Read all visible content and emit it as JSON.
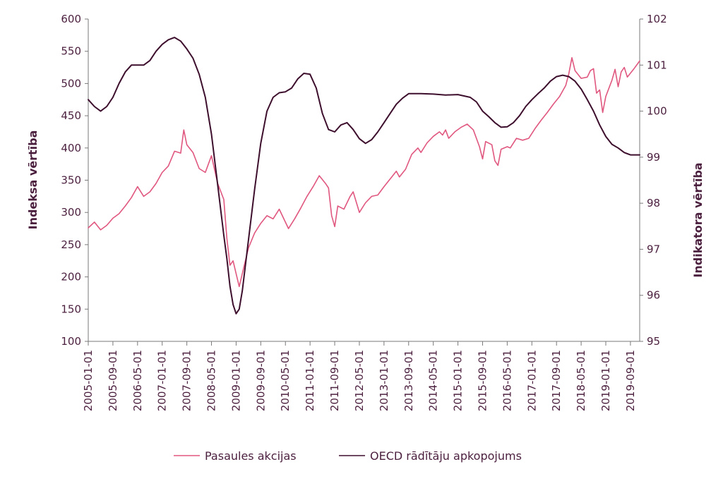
{
  "chart_data": {
    "type": "line",
    "title": "",
    "x_ticks": [
      "2005-01-01",
      "2005-09-01",
      "2006-05-01",
      "2007-01-01",
      "2007-09-01",
      "2008-05-01",
      "2009-01-01",
      "2009-09-01",
      "2010-05-01",
      "2011-01-01",
      "2011-09-01",
      "2012-05-01",
      "2013-01-01",
      "2013-09-01",
      "2014-05-01",
      "2015-01-01",
      "2015-09-01",
      "2016-05-01",
      "2017-01-01",
      "2017-09-01",
      "2018-05-01",
      "2019-01-01",
      "2019-09-01"
    ],
    "x_range": [
      "2005-01-01",
      "2019-12-01"
    ],
    "y_left": {
      "label": "Indeksa vērtība",
      "min": 100,
      "max": 600,
      "ticks": [
        100,
        150,
        200,
        250,
        300,
        350,
        400,
        450,
        500,
        550,
        600
      ]
    },
    "y_right": {
      "label": "Indikatora vērtība",
      "min": 95,
      "max": 102,
      "ticks": [
        95,
        96,
        97,
        98,
        99,
        100,
        101,
        102
      ]
    },
    "grid": false,
    "legend_position": "bottom",
    "series": [
      {
        "name": "Pasaules akcijas",
        "axis": "left",
        "color": "#e0577f",
        "points": [
          [
            "2005-01-01",
            276
          ],
          [
            "2005-03-01",
            285
          ],
          [
            "2005-05-01",
            273
          ],
          [
            "2005-07-01",
            280
          ],
          [
            "2005-09-01",
            291
          ],
          [
            "2005-11-01",
            298
          ],
          [
            "2006-01-01",
            310
          ],
          [
            "2006-03-01",
            323
          ],
          [
            "2006-05-01",
            340
          ],
          [
            "2006-07-01",
            325
          ],
          [
            "2006-09-01",
            332
          ],
          [
            "2006-11-01",
            345
          ],
          [
            "2007-01-01",
            362
          ],
          [
            "2007-03-01",
            372
          ],
          [
            "2007-05-01",
            395
          ],
          [
            "2007-07-01",
            392
          ],
          [
            "2007-08-01",
            428
          ],
          [
            "2007-09-01",
            405
          ],
          [
            "2007-11-01",
            393
          ],
          [
            "2008-01-01",
            368
          ],
          [
            "2008-03-01",
            362
          ],
          [
            "2008-05-01",
            388
          ],
          [
            "2008-07-01",
            345
          ],
          [
            "2008-09-01",
            320
          ],
          [
            "2008-10-01",
            260
          ],
          [
            "2008-11-01",
            218
          ],
          [
            "2008-12-01",
            225
          ],
          [
            "2009-01-01",
            205
          ],
          [
            "2009-02-01",
            185
          ],
          [
            "2009-03-01",
            205
          ],
          [
            "2009-05-01",
            245
          ],
          [
            "2009-07-01",
            268
          ],
          [
            "2009-09-01",
            283
          ],
          [
            "2009-11-01",
            295
          ],
          [
            "2010-01-01",
            290
          ],
          [
            "2010-03-01",
            305
          ],
          [
            "2010-05-01",
            285
          ],
          [
            "2010-06-01",
            275
          ],
          [
            "2010-08-01",
            290
          ],
          [
            "2010-10-01",
            307
          ],
          [
            "2010-12-01",
            325
          ],
          [
            "2011-02-01",
            340
          ],
          [
            "2011-04-01",
            357
          ],
          [
            "2011-06-01",
            345
          ],
          [
            "2011-07-01",
            338
          ],
          [
            "2011-08-01",
            295
          ],
          [
            "2011-09-01",
            278
          ],
          [
            "2011-10-01",
            310
          ],
          [
            "2011-12-01",
            305
          ],
          [
            "2012-02-01",
            325
          ],
          [
            "2012-03-01",
            332
          ],
          [
            "2012-05-01",
            300
          ],
          [
            "2012-07-01",
            315
          ],
          [
            "2012-09-01",
            325
          ],
          [
            "2012-11-01",
            327
          ],
          [
            "2013-01-01",
            340
          ],
          [
            "2013-03-01",
            352
          ],
          [
            "2013-05-01",
            364
          ],
          [
            "2013-06-01",
            355
          ],
          [
            "2013-08-01",
            367
          ],
          [
            "2013-10-01",
            390
          ],
          [
            "2013-12-01",
            400
          ],
          [
            "2014-01-01",
            393
          ],
          [
            "2014-03-01",
            408
          ],
          [
            "2014-05-01",
            418
          ],
          [
            "2014-07-01",
            425
          ],
          [
            "2014-08-01",
            420
          ],
          [
            "2014-09-01",
            428
          ],
          [
            "2014-10-01",
            415
          ],
          [
            "2014-12-01",
            425
          ],
          [
            "2015-02-01",
            432
          ],
          [
            "2015-04-01",
            437
          ],
          [
            "2015-06-01",
            428
          ],
          [
            "2015-08-01",
            402
          ],
          [
            "2015-09-01",
            383
          ],
          [
            "2015-10-01",
            410
          ],
          [
            "2015-12-01",
            405
          ],
          [
            "2016-01-01",
            380
          ],
          [
            "2016-02-01",
            373
          ],
          [
            "2016-03-01",
            398
          ],
          [
            "2016-05-01",
            402
          ],
          [
            "2016-06-01",
            400
          ],
          [
            "2016-08-01",
            415
          ],
          [
            "2016-10-01",
            412
          ],
          [
            "2016-12-01",
            415
          ],
          [
            "2017-02-01",
            430
          ],
          [
            "2017-04-01",
            443
          ],
          [
            "2017-06-01",
            455
          ],
          [
            "2017-08-01",
            468
          ],
          [
            "2017-10-01",
            480
          ],
          [
            "2017-12-01",
            497
          ],
          [
            "2018-01-01",
            515
          ],
          [
            "2018-02-01",
            540
          ],
          [
            "2018-03-01",
            520
          ],
          [
            "2018-05-01",
            508
          ],
          [
            "2018-07-01",
            510
          ],
          [
            "2018-08-01",
            520
          ],
          [
            "2018-09-01",
            523
          ],
          [
            "2018-10-01",
            485
          ],
          [
            "2018-11-01",
            490
          ],
          [
            "2018-12-01",
            455
          ],
          [
            "2019-01-01",
            480
          ],
          [
            "2019-03-01",
            505
          ],
          [
            "2019-04-01",
            522
          ],
          [
            "2019-05-01",
            495
          ],
          [
            "2019-06-01",
            518
          ],
          [
            "2019-07-01",
            525
          ],
          [
            "2019-08-01",
            510
          ],
          [
            "2019-10-01",
            522
          ],
          [
            "2019-12-01",
            535
          ]
        ]
      },
      {
        "name": "OECD rādītāju apkopojums",
        "axis": "right",
        "color": "#3d0f2d",
        "points": [
          [
            "2005-01-01",
            100.25
          ],
          [
            "2005-03-01",
            100.1
          ],
          [
            "2005-05-01",
            100.0
          ],
          [
            "2005-07-01",
            100.1
          ],
          [
            "2005-09-01",
            100.3
          ],
          [
            "2005-11-01",
            100.6
          ],
          [
            "2006-01-01",
            100.85
          ],
          [
            "2006-03-01",
            101.0
          ],
          [
            "2006-05-01",
            101.0
          ],
          [
            "2006-07-01",
            101.0
          ],
          [
            "2006-09-01",
            101.1
          ],
          [
            "2006-11-01",
            101.3
          ],
          [
            "2007-01-01",
            101.45
          ],
          [
            "2007-03-01",
            101.55
          ],
          [
            "2007-05-01",
            101.6
          ],
          [
            "2007-07-01",
            101.52
          ],
          [
            "2007-09-01",
            101.35
          ],
          [
            "2007-11-01",
            101.15
          ],
          [
            "2008-01-01",
            100.8
          ],
          [
            "2008-03-01",
            100.3
          ],
          [
            "2008-05-01",
            99.5
          ],
          [
            "2008-07-01",
            98.4
          ],
          [
            "2008-09-01",
            97.3
          ],
          [
            "2008-10-01",
            96.8
          ],
          [
            "2008-11-01",
            96.2
          ],
          [
            "2008-12-01",
            95.8
          ],
          [
            "2009-01-01",
            95.6
          ],
          [
            "2009-02-01",
            95.7
          ],
          [
            "2009-03-01",
            96.1
          ],
          [
            "2009-05-01",
            97.2
          ],
          [
            "2009-07-01",
            98.3
          ],
          [
            "2009-09-01",
            99.3
          ],
          [
            "2009-11-01",
            100.0
          ],
          [
            "2010-01-01",
            100.3
          ],
          [
            "2010-03-01",
            100.4
          ],
          [
            "2010-05-01",
            100.42
          ],
          [
            "2010-07-01",
            100.5
          ],
          [
            "2010-09-01",
            100.7
          ],
          [
            "2010-11-01",
            100.82
          ],
          [
            "2011-01-01",
            100.8
          ],
          [
            "2011-03-01",
            100.5
          ],
          [
            "2011-05-01",
            99.95
          ],
          [
            "2011-07-01",
            99.6
          ],
          [
            "2011-09-01",
            99.55
          ],
          [
            "2011-11-01",
            99.7
          ],
          [
            "2012-01-01",
            99.75
          ],
          [
            "2012-03-01",
            99.6
          ],
          [
            "2012-05-01",
            99.4
          ],
          [
            "2012-07-01",
            99.3
          ],
          [
            "2012-09-01",
            99.38
          ],
          [
            "2012-11-01",
            99.55
          ],
          [
            "2013-01-01",
            99.75
          ],
          [
            "2013-03-01",
            99.95
          ],
          [
            "2013-05-01",
            100.15
          ],
          [
            "2013-07-01",
            100.28
          ],
          [
            "2013-09-01",
            100.38
          ],
          [
            "2013-11-01",
            100.38
          ],
          [
            "2014-01-01",
            100.38
          ],
          [
            "2014-05-01",
            100.37
          ],
          [
            "2014-09-01",
            100.35
          ],
          [
            "2015-01-01",
            100.36
          ],
          [
            "2015-05-01",
            100.3
          ],
          [
            "2015-07-01",
            100.2
          ],
          [
            "2015-09-01",
            100.0
          ],
          [
            "2015-11-01",
            99.88
          ],
          [
            "2016-01-01",
            99.75
          ],
          [
            "2016-03-01",
            99.65
          ],
          [
            "2016-05-01",
            99.66
          ],
          [
            "2016-07-01",
            99.75
          ],
          [
            "2016-09-01",
            99.9
          ],
          [
            "2016-11-01",
            100.1
          ],
          [
            "2017-01-01",
            100.25
          ],
          [
            "2017-03-01",
            100.38
          ],
          [
            "2017-05-01",
            100.5
          ],
          [
            "2017-07-01",
            100.65
          ],
          [
            "2017-09-01",
            100.75
          ],
          [
            "2017-11-01",
            100.78
          ],
          [
            "2018-01-01",
            100.75
          ],
          [
            "2018-03-01",
            100.65
          ],
          [
            "2018-05-01",
            100.48
          ],
          [
            "2018-07-01",
            100.25
          ],
          [
            "2018-09-01",
            100.0
          ],
          [
            "2018-11-01",
            99.7
          ],
          [
            "2019-01-01",
            99.45
          ],
          [
            "2019-03-01",
            99.28
          ],
          [
            "2019-05-01",
            99.2
          ],
          [
            "2019-07-01",
            99.1
          ],
          [
            "2019-09-01",
            99.05
          ],
          [
            "2019-12-01",
            99.05
          ]
        ]
      }
    ]
  }
}
